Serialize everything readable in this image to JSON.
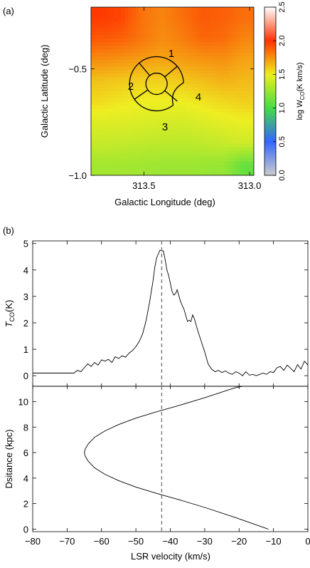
{
  "panel_a": {
    "label": "(a)",
    "xlabel": "Galactic Longitude (deg)",
    "ylabel": "Galactic Latitude (deg)",
    "x_ticks": [
      "313.5",
      "313.0"
    ],
    "y_ticks": [
      "−0.5",
      "−1.0"
    ],
    "region_labels": [
      "1",
      "2",
      "3",
      "4"
    ],
    "colorbar_ticks": [
      "0.0",
      "0.5",
      "1.0",
      "1.5",
      "2.0",
      "2.5"
    ],
    "colorbar_label_main": "log W",
    "colorbar_label_sub": "CO",
    "colorbar_label_tail": "(K km/s)"
  },
  "panel_b": {
    "label": "(b)",
    "top_ylabel_main": "T",
    "top_ylabel_sub": "CO",
    "top_ylabel_tail": "(K)",
    "top_y_ticks": [
      "0",
      "1",
      "2",
      "3",
      "4",
      "5"
    ],
    "bottom_ylabel": "Dsitance (kpc)",
    "bottom_y_ticks": [
      "0",
      "2",
      "4",
      "6",
      "8",
      "10"
    ],
    "x_ticks": [
      "−80",
      "−70",
      "−60",
      "−50",
      "−40",
      "−30",
      "−20",
      "−10",
      "0"
    ],
    "xlabel": "LSR velocity (km/s)"
  },
  "chart_data": [
    {
      "type": "heatmap",
      "title": "",
      "xlabel": "Galactic Longitude (deg)",
      "ylabel": "Galactic Latitude (deg)",
      "xlim": [
        313.75,
        312.98
      ],
      "ylim": [
        -1.0,
        -0.21
      ],
      "colorbar": {
        "label": "log W_CO (K km/s)",
        "range": [
          0.0,
          2.5
        ]
      },
      "colormap": [
        "#cccccc",
        "#3366ff",
        "#44dd44",
        "#eeee22",
        "#ff3300",
        "#ffffff"
      ],
      "grid_x": [
        313.71,
        313.61,
        313.52,
        313.43,
        313.33,
        313.24,
        313.14,
        313.05
      ],
      "grid_y": [
        -0.25,
        -0.35,
        -0.45,
        -0.55,
        -0.65,
        -0.75,
        -0.85,
        -0.95
      ],
      "values": [
        [
          1.98,
          1.95,
          1.83,
          1.78,
          1.84,
          1.9,
          1.88,
          1.84
        ],
        [
          1.9,
          1.88,
          1.82,
          1.76,
          1.8,
          1.86,
          1.85,
          1.78
        ],
        [
          1.76,
          1.74,
          1.72,
          1.7,
          1.72,
          1.74,
          1.75,
          1.7
        ],
        [
          1.62,
          1.6,
          1.58,
          1.58,
          1.6,
          1.63,
          1.66,
          1.64
        ],
        [
          1.55,
          1.52,
          1.5,
          1.5,
          1.5,
          1.53,
          1.56,
          1.58
        ],
        [
          1.45,
          1.45,
          1.44,
          1.43,
          1.42,
          1.44,
          1.47,
          1.49
        ],
        [
          1.38,
          1.37,
          1.36,
          1.35,
          1.35,
          1.36,
          1.38,
          1.4
        ],
        [
          1.28,
          1.28,
          1.27,
          1.26,
          1.26,
          1.25,
          1.24,
          1.1
        ]
      ],
      "x_ticks": [
        313.5,
        313.0
      ],
      "y_ticks": [
        -0.5,
        -1.0
      ],
      "region_center": [
        313.44,
        -0.57
      ],
      "region_labels": [
        "1",
        "2",
        "3",
        "4"
      ]
    },
    {
      "type": "line",
      "xlabel": "",
      "ylabel": "T_CO (K)",
      "xlim": [
        -80,
        0
      ],
      "ylim": [
        -0.4,
        5.1
      ],
      "x": [
        -80,
        -68,
        -67,
        -66,
        -65,
        -64,
        -63,
        -62,
        -61,
        -60,
        -59,
        -58,
        -57,
        -56,
        -55,
        -54,
        -53,
        -52,
        -51,
        -50,
        -49,
        -48,
        -47,
        -46,
        -45,
        -44.5,
        -44,
        -43.5,
        -43,
        -42.5,
        -42,
        -41.5,
        -41,
        -40.5,
        -40,
        -39.5,
        -39,
        -38.5,
        -38,
        -37,
        -36,
        -35,
        -34.5,
        -34,
        -33.5,
        -33,
        -32,
        -31,
        -30,
        -29,
        -28,
        -27,
        -26,
        -25,
        -24,
        -23,
        -22,
        -21,
        -20,
        -19,
        -18,
        -17,
        -16,
        -15,
        -14,
        -13,
        -12,
        -11,
        -10,
        -9,
        -8,
        -7,
        -6,
        -5,
        -4,
        -3,
        -2,
        -1,
        0
      ],
      "values": [
        0.1,
        0.1,
        0.2,
        0.15,
        0.3,
        0.45,
        0.35,
        0.5,
        0.4,
        0.6,
        0.55,
        0.62,
        0.5,
        0.72,
        0.65,
        0.75,
        0.7,
        0.85,
        0.95,
        1.1,
        1.3,
        1.6,
        2.1,
        2.8,
        3.6,
        4.1,
        4.45,
        4.6,
        4.75,
        4.72,
        4.72,
        4.4,
        4.0,
        3.8,
        3.5,
        3.2,
        3.05,
        3.1,
        3.25,
        2.8,
        2.5,
        2.05,
        2.1,
        2.05,
        2.3,
        2.15,
        1.7,
        1.3,
        0.9,
        0.45,
        0.25,
        0.15,
        0.2,
        0.12,
        0.18,
        0.1,
        0.05,
        0.15,
        0.1,
        0.0,
        0.15,
        0.02,
        0.05,
        0.0,
        0.05,
        0.1,
        0.05,
        0.15,
        0.12,
        0.3,
        0.35,
        0.2,
        0.4,
        0.28,
        0.15,
        0.42,
        0.25,
        0.55,
        0.4
      ],
      "vline_x": -42.5,
      "y_ticks": [
        0,
        1,
        2,
        3,
        4,
        5
      ]
    },
    {
      "type": "line",
      "xlabel": "LSR velocity (km/s)",
      "ylabel": "Dsitance (kpc)",
      "xlim": [
        -80,
        0
      ],
      "ylim": [
        -0.2,
        11.2
      ],
      "x": [
        -11.5,
        -21,
        -30,
        -38,
        -44,
        -50,
        -55,
        -59,
        -62,
        -63.8,
        -64.7,
        -65.0,
        -64.7,
        -63.8,
        -62,
        -59,
        -55,
        -50,
        -44,
        -38,
        -30,
        -21,
        -19
      ],
      "values": [
        0,
        0.9,
        1.7,
        2.35,
        2.8,
        3.3,
        3.8,
        4.3,
        4.8,
        5.3,
        5.7,
        6.0,
        6.3,
        6.7,
        7.2,
        7.7,
        8.2,
        8.7,
        9.2,
        9.65,
        10.3,
        11.1,
        11.2
      ],
      "vline_x": -42.5,
      "x_ticks": [
        -80,
        -70,
        -60,
        -50,
        -40,
        -30,
        -20,
        -10,
        0
      ],
      "y_ticks": [
        0,
        2,
        4,
        6,
        8,
        10
      ]
    }
  ]
}
